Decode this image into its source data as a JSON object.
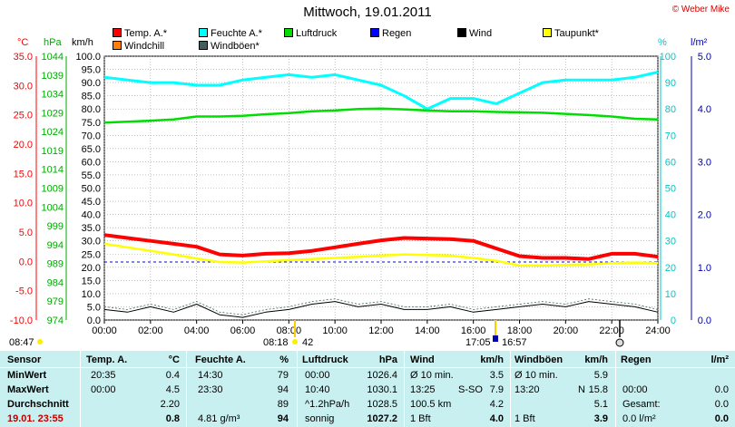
{
  "header": {
    "title": "Mittwoch, 19.01.2011",
    "copyright": "© Weber Mike"
  },
  "legend": [
    {
      "label": "Temp. A.*",
      "color": "#ff0000"
    },
    {
      "label": "Feuchte A.*",
      "color": "#00ffff"
    },
    {
      "label": "Luftdruck",
      "color": "#00dd00"
    },
    {
      "label": "Regen",
      "color": "#0000ff"
    },
    {
      "label": "Wind",
      "color": "#000000"
    },
    {
      "label": "Taupunkt*",
      "color": "#ffff00"
    },
    {
      "label": "Windchill",
      "color": "#ff8000"
    },
    {
      "label": "Windböen*",
      "color": "#406060"
    }
  ],
  "axis_units": {
    "temp": "°C",
    "pressure": "hPa",
    "wind": "km/h",
    "humidity": "%",
    "rain": "l/m²"
  },
  "markers": {
    "left_time": "08:47",
    "mid_time": "08:18",
    "mid_value": "42",
    "right_time_1": "17:05",
    "right_time_2": "16:57"
  },
  "chart_data": {
    "type": "line",
    "x_ticks": [
      "00:00",
      "02:00",
      "04:00",
      "06:00",
      "08:00",
      "10:00",
      "12:00",
      "14:00",
      "16:00",
      "18:00",
      "20:00",
      "22:00",
      "24:00"
    ],
    "axes": {
      "temp_c": {
        "ticks": [
          "35.0",
          "30.0",
          "25.0",
          "20.0",
          "15.0",
          "10.0",
          "5.0",
          "0.0",
          "-5.0",
          "-10.0"
        ],
        "range": [
          -10,
          35
        ]
      },
      "pressure_hpa": {
        "ticks": [
          "1044",
          "1039",
          "1034",
          "1029",
          "1024",
          "1019",
          "1014",
          "1009",
          "1004",
          "999",
          "994",
          "989",
          "984",
          "979",
          "974"
        ],
        "range": [
          974,
          1044
        ]
      },
      "wind_kmh": {
        "ticks": [
          "100.0",
          "95.0",
          "90.0",
          "85.0",
          "80.0",
          "75.0",
          "70.0",
          "65.0",
          "60.0",
          "55.0",
          "50.0",
          "45.0",
          "40.0",
          "35.0",
          "30.0",
          "25.0",
          "20.0",
          "15.0",
          "10.0",
          "5.0",
          "0.0"
        ],
        "range": [
          0,
          100
        ]
      },
      "humidity_pct": {
        "ticks": [
          "100",
          "90",
          "80",
          "70",
          "60",
          "50",
          "40",
          "30",
          "20",
          "10",
          "0"
        ],
        "range": [
          0,
          100
        ]
      },
      "rain_lm2": {
        "ticks": [
          "5.0",
          "4.0",
          "3.0",
          "2.0",
          "1.0",
          "0.0"
        ],
        "range": [
          0,
          5
        ]
      }
    },
    "series": [
      {
        "name": "Feuchte A.*",
        "axis": "humidity_pct",
        "color": "#00ffff",
        "x": [
          0,
          1,
          2,
          3,
          4,
          5,
          6,
          7,
          8,
          9,
          10,
          11,
          12,
          13,
          14,
          15,
          16,
          17,
          18,
          19,
          20,
          21,
          22,
          23,
          24
        ],
        "y": [
          92,
          91,
          90,
          90,
          89,
          89,
          91,
          92,
          93,
          92,
          93,
          91,
          89,
          85,
          80,
          84,
          84,
          82,
          86,
          90,
          91,
          91,
          91,
          92,
          94
        ]
      },
      {
        "name": "Luftdruck",
        "axis": "pressure_hpa",
        "color": "#00dd00",
        "x": [
          0,
          1,
          2,
          3,
          4,
          5,
          6,
          7,
          8,
          9,
          10,
          11,
          12,
          13,
          14,
          15,
          16,
          17,
          18,
          19,
          20,
          21,
          22,
          23,
          24
        ],
        "y": [
          1026.4,
          1026.6,
          1026.9,
          1027.2,
          1028.0,
          1028.0,
          1028.2,
          1028.6,
          1028.9,
          1029.4,
          1029.6,
          1030.0,
          1030.1,
          1029.9,
          1029.6,
          1029.4,
          1029.4,
          1029.2,
          1029.1,
          1029.0,
          1028.7,
          1028.4,
          1028.0,
          1027.4,
          1027.2
        ]
      },
      {
        "name": "Temp. A.*",
        "axis": "temp_c",
        "color": "#ff0000",
        "x": [
          0,
          1,
          2,
          3,
          4,
          5,
          6,
          7,
          8,
          9,
          10,
          11,
          12,
          13,
          14,
          15,
          16,
          17,
          18,
          19,
          20,
          21,
          22,
          23,
          24
        ],
        "y": [
          4.5,
          4.0,
          3.5,
          3.0,
          2.5,
          1.2,
          1.0,
          1.3,
          1.4,
          1.8,
          2.4,
          3.0,
          3.6,
          4.0,
          3.9,
          3.8,
          3.5,
          2.2,
          0.9,
          0.6,
          0.6,
          0.4,
          1.3,
          1.3,
          0.8
        ]
      },
      {
        "name": "Taupunkt*",
        "axis": "temp_c",
        "color": "#ffff00",
        "x": [
          0,
          1,
          2,
          3,
          4,
          5,
          6,
          7,
          8,
          9,
          10,
          11,
          12,
          13,
          14,
          15,
          16,
          17,
          18,
          19,
          20,
          21,
          22,
          23,
          24
        ],
        "y": [
          3.0,
          2.4,
          1.8,
          1.2,
          0.5,
          -0.1,
          -0.2,
          0.0,
          0.2,
          0.4,
          0.6,
          0.8,
          1.0,
          1.2,
          1.1,
          1.0,
          0.6,
          0.1,
          -0.7,
          -0.7,
          -0.6,
          -0.5,
          -0.3,
          -0.2,
          -0.3
        ]
      },
      {
        "name": "Wind",
        "axis": "wind_kmh",
        "color": "#000000",
        "x": [
          0,
          1,
          2,
          3,
          4,
          5,
          6,
          7,
          8,
          9,
          10,
          11,
          12,
          13,
          14,
          15,
          16,
          17,
          18,
          19,
          20,
          21,
          22,
          23,
          24
        ],
        "y": [
          4,
          3,
          5,
          3,
          6,
          2,
          1,
          3,
          4,
          6,
          7,
          5,
          6,
          4,
          4,
          5,
          3,
          4,
          5,
          6,
          5,
          7,
          6,
          5,
          3
        ]
      },
      {
        "name": "Windböen*",
        "axis": "wind_kmh",
        "color": "#406060",
        "x": [
          0,
          1,
          2,
          3,
          4,
          5,
          6,
          7,
          8,
          9,
          10,
          11,
          12,
          13,
          14,
          15,
          16,
          17,
          18,
          19,
          20,
          21,
          22,
          23,
          24
        ],
        "y": [
          5,
          4,
          6,
          4,
          7,
          3,
          2,
          4,
          5,
          7,
          8,
          6,
          7,
          5,
          5,
          6,
          4,
          5,
          6,
          7,
          6,
          8,
          7,
          6,
          4
        ]
      }
    ],
    "reference_line": {
      "axis": "rain_lm2",
      "value": 1.1,
      "color": "#0000ff",
      "style": "dashed"
    }
  },
  "table": {
    "headers": [
      "Sensor",
      "Temp. A.",
      "°C",
      "Feuchte A.",
      "%",
      "Luftdruck",
      "hPa",
      "Wind",
      "km/h",
      "Windböen",
      "km/h",
      "Regen",
      "l/m²"
    ],
    "rows": [
      {
        "label": "MinWert",
        "t_time": "20:35",
        "t_val": "0.4",
        "h_time": "14:30",
        "h_val": "79",
        "p_time": "00:00",
        "p_val": "1026.4",
        "w_desc": "Ø 10 min.",
        "w_val": "3.5",
        "g_desc": "Ø 10 min.",
        "g_val": "5.9",
        "r_desc": "",
        "r_val": ""
      },
      {
        "label": "MaxWert",
        "t_time": "00:00",
        "t_val": "4.5",
        "h_time": "23:30",
        "h_val": "94",
        "p_time": "10:40",
        "p_val": "1030.1",
        "w_desc": "13:25",
        "w_dir": "S-SO",
        "w_val": "7.9",
        "g_desc": "13:20",
        "g_dir": "N",
        "g_val": "15.8",
        "r_desc": "00:00",
        "r_val": "0.0"
      },
      {
        "label": "Durchschnitt",
        "t_time": "",
        "t_val": "2.20",
        "h_time": "",
        "h_val": "89",
        "p_time": "^1.2hPa/h",
        "p_val": "1028.5",
        "w_desc": "100.5 km",
        "w_val": "4.2",
        "g_desc": "",
        "g_val": "5.1",
        "r_desc": "Gesamt:",
        "r_val": "0.0"
      },
      {
        "label": "19.01. 23:55",
        "t_time": "",
        "t_val": "0.8",
        "h_time": "4.81 g/m³",
        "h_val": "94",
        "p_time": "sonnig",
        "p_val": "1027.2",
        "w_desc": "1 Bft",
        "w_val": "4.0",
        "g_desc": "1 Bft",
        "g_val": "3.9",
        "r_desc": "0.0 l/m²",
        "r_val": "0.0"
      }
    ]
  }
}
